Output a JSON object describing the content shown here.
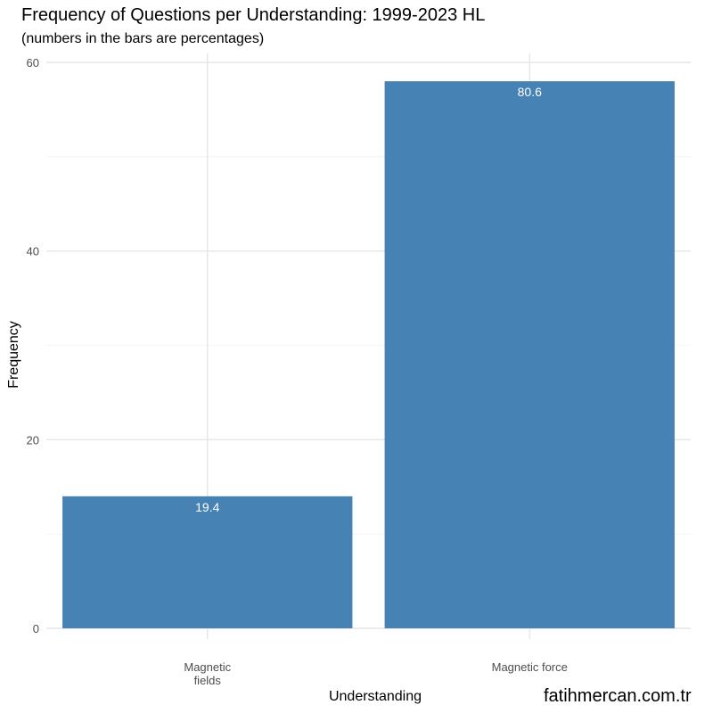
{
  "chart_data": {
    "type": "bar",
    "title": "Frequency of Questions per Understanding: 1999-2023 HL",
    "subtitle": "(numbers in the bars are percentages)",
    "xlabel": "Understanding",
    "ylabel": "Frequency",
    "categories": [
      [
        "Magnetic",
        "fields"
      ],
      [
        "Magnetic force"
      ]
    ],
    "values": [
      14,
      58
    ],
    "bar_labels": [
      "19.4",
      "80.6"
    ],
    "y_ticks": [
      0,
      20,
      40,
      60
    ],
    "ylim": [
      0,
      61
    ],
    "bar_color": "#4682b4",
    "grid": true
  },
  "watermark": "fatihmercan.com.tr"
}
